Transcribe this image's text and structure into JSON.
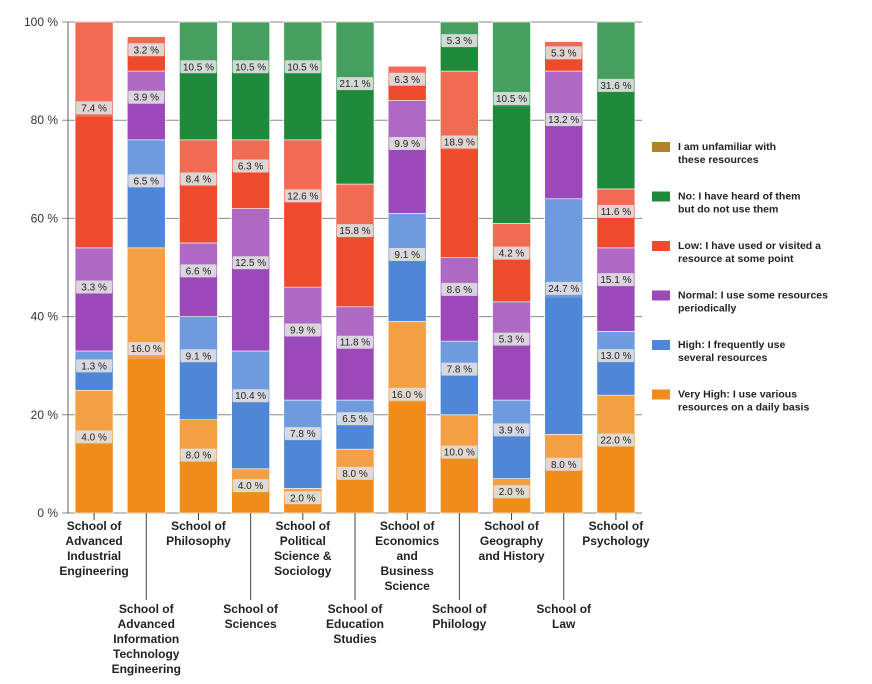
{
  "chart_data": {
    "type": "bar",
    "stacked": true,
    "y_axis": {
      "min": 0,
      "max": 100,
      "ticks": [
        "0 %",
        "20 %",
        "40 %",
        "60 %",
        "80 %",
        "100 %"
      ]
    },
    "categories": [
      "School of Advanced Industrial Engineering",
      "School of Advanced Information Technology Engineering",
      "School of Philosophy",
      "School of Sciences",
      "School of Political Science & Sociology",
      "School of Education Studies",
      "School of Economics and Business Science",
      "School of Philology",
      "School of Geography and History",
      "School of Law",
      "School of Psychology"
    ],
    "category_label_lines": [
      [
        "School of",
        "Advanced",
        "Industrial",
        "Engineering"
      ],
      [
        "School of",
        "Advanced",
        "Information",
        "Technology",
        "Engineering"
      ],
      [
        "School of",
        "Philosophy"
      ],
      [
        "School of",
        "Sciences"
      ],
      [
        "School of",
        "Political",
        "Science &",
        "Sociology"
      ],
      [
        "School of",
        "Education",
        "Studies"
      ],
      [
        "School of",
        "Economics",
        "and",
        "Business",
        "Science"
      ],
      [
        "School of",
        "Philology"
      ],
      [
        "School of",
        "Geography",
        "and History"
      ],
      [
        "School of",
        "Law"
      ],
      [
        "School of",
        "Psychology"
      ]
    ],
    "series": [
      {
        "name": "Very High: I use various resources on a daily basis",
        "color": "#f08c1a",
        "values": [
          25,
          54,
          19,
          9,
          5,
          13,
          39,
          20,
          7,
          16,
          24
        ],
        "labels": [
          "4.0 %",
          "16.0 %",
          "8.0 %",
          "4.0 %",
          "2.0 %",
          "8.0 %",
          "16.0 %",
          "10.0 %",
          "2.0 %",
          "8.0 %",
          "22.0 %"
        ]
      },
      {
        "name": "High: I frequently use several resources",
        "color": "#4f86d6",
        "values": [
          8,
          22,
          21,
          24,
          18,
          10,
          22,
          15,
          16,
          48,
          13
        ],
        "labels": [
          "1.3 %",
          "6.5 %",
          "9.1 %",
          "10.4 %",
          "7.8 %",
          "6.5 %",
          "9.1 %",
          "7.8 %",
          "3.9 %",
          "24.7 %",
          "13.0 %"
        ]
      },
      {
        "name": "Normal: I use some resources periodically",
        "color": "#9b49b8",
        "values": [
          21,
          14,
          15,
          29,
          23,
          19,
          23,
          17,
          20,
          26,
          17
        ],
        "labels": [
          "3.3 %",
          "3.9 %",
          "6.6 %",
          "12.5 %",
          "9.9 %",
          "11.8 %",
          "9.9 %",
          "8.6 %",
          "5.3 %",
          "13.2 %",
          "15.1 %"
        ]
      },
      {
        "name": "Low: I have used or visited a resource at some point",
        "color": "#ee4a2e",
        "values": [
          46,
          7,
          21,
          14,
          30,
          25,
          7,
          38,
          16,
          6,
          12
        ],
        "labels": [
          "7.4 %",
          "3.2 %",
          "8.4 %",
          "6.3 %",
          "12.6 %",
          "15.8 %",
          "6.3 %",
          "18.9 %",
          "4.2 %",
          "5.3 %",
          "11.6 %"
        ]
      },
      {
        "name": "No: I have heard of them but do not use them",
        "color": "#1f8a3c",
        "values": [
          0,
          0,
          24,
          24,
          24,
          33,
          0,
          10,
          41,
          0,
          34
        ],
        "labels": [
          "",
          "",
          "10.5 %",
          "10.5 %",
          "10.5 %",
          "21.1 %",
          "",
          "5.3 %",
          "10.5 %",
          "",
          "31.6 %"
        ]
      },
      {
        "name": "I am unfamiliar with these resources",
        "color": "#b0822a",
        "values": [
          0,
          0,
          0,
          0,
          0,
          0,
          0,
          0,
          0,
          0,
          0
        ],
        "labels": [
          "",
          "",
          "",
          "",
          "",
          "",
          "",
          "",
          "",
          "",
          ""
        ]
      }
    ],
    "legend": {
      "placement": "right",
      "order": [
        5,
        4,
        3,
        2,
        1,
        0
      ],
      "label_lines": [
        [
          "Very High: I use various",
          "resources on a daily basis"
        ],
        [
          "High: I  frequently use",
          "several resources"
        ],
        [
          "Normal: I use some resources",
          "periodically"
        ],
        [
          "Low: I have used or visited a",
          "resource at some point"
        ],
        [
          "No: I have heard of them",
          "but do not use them"
        ],
        [
          "I am unfamiliar with",
          "these resources"
        ]
      ]
    },
    "grid": true
  }
}
